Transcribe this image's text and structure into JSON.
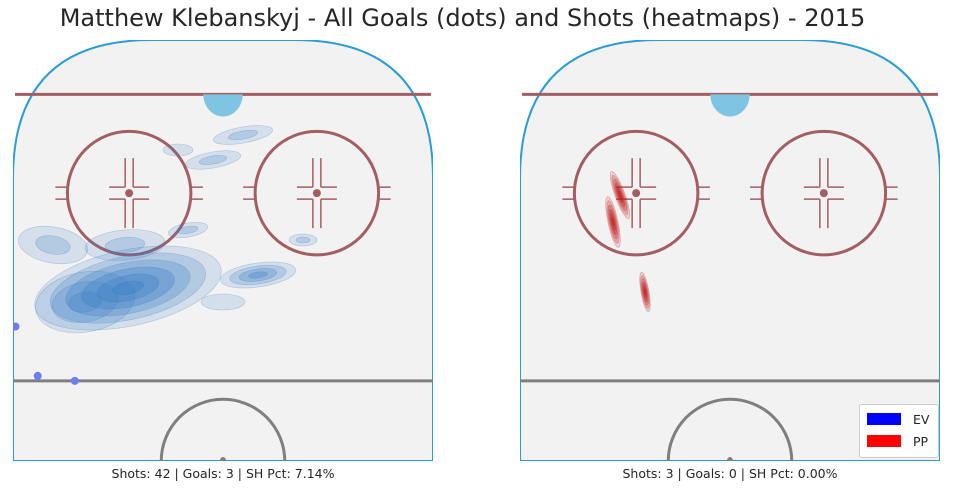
{
  "chart_data": [
    {
      "type": "heatmap",
      "title": "Matthew Klebanskyj - All Goals (dots) and Shots (heatmaps) - 2015",
      "panel": "EV",
      "caption": "Shots: 42 | Goals: 3 | SH Pct: 7.14%",
      "shots": 42,
      "goals": 3,
      "sh_pct": "7.14%",
      "color": "#3b7fc4",
      "goal_locations": [
        [
          -84,
          22
        ],
        [
          -75,
          12
        ],
        [
          -60,
          11
        ]
      ]
    },
    {
      "type": "heatmap",
      "panel": "PP",
      "caption": "Shots: 3 | Goals: 0 | SH Pct: 0.00%",
      "shots": 3,
      "goals": 0,
      "sh_pct": "0.00%",
      "color": "#c01818",
      "goal_locations": []
    }
  ],
  "legend": {
    "placement": "bottom-right",
    "entries": [
      {
        "label": "EV",
        "color": "#0000ff"
      },
      {
        "label": "PP",
        "color": "#ff0000"
      }
    ]
  },
  "colors": {
    "boards": "#2a9ed4",
    "ice": "#f2f2f2",
    "goal_line": "#a35e62",
    "crease": "#7fc4e2",
    "faceoff": "#a35e62",
    "blue_line": "#7f7f7f",
    "goal_dot": "#6b7cf5"
  }
}
